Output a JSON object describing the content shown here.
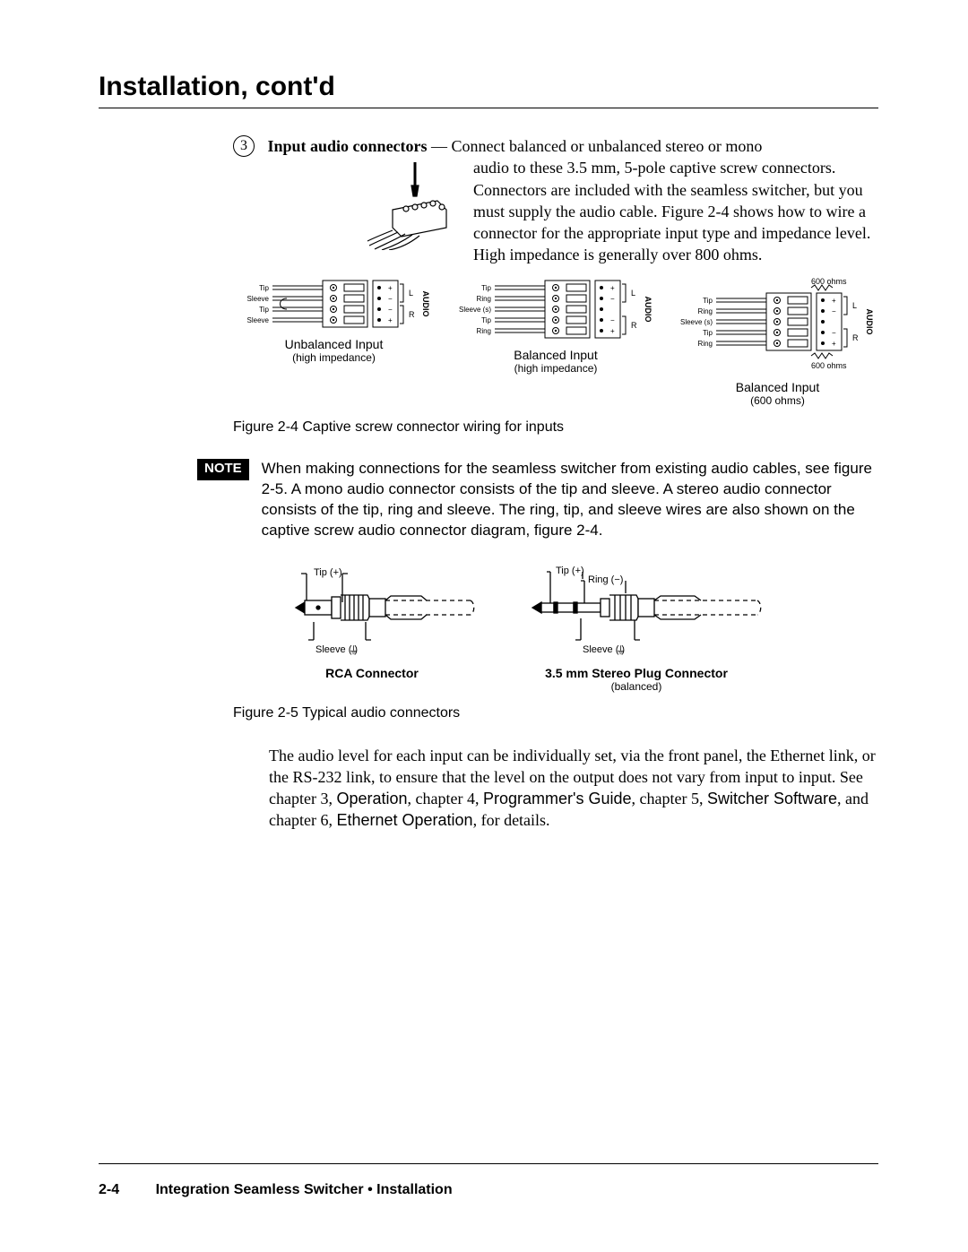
{
  "page": {
    "title": "Installation, cont'd",
    "footer_page": "2-4",
    "footer_text": "Integration Seamless Switcher • Installation"
  },
  "item3": {
    "number": "3",
    "lead_bold": "Input audio connectors",
    "lead_rest": " — Connect balanced or unbalanced stereo or mono",
    "body": "audio to these 3.5 mm, 5-pole captive screw connectors. Connectors are included with the seamless switcher, but you must supply the audio cable.  Figure 2-4 shows how to wire a connector for the appropriate input type and impedance level.  High impedance is generally over 800 ohms."
  },
  "fig24": {
    "caption": "Figure 2-4   Captive screw connector wiring for inputs",
    "ohms_label": "600 ohms",
    "audio_label": "AUDIO",
    "channels": {
      "L": "L",
      "R": "R"
    },
    "pins": {
      "plus": "+",
      "minus": "−"
    },
    "blocks": [
      {
        "title": "Unbalanced Input",
        "sub": "(high impedance)",
        "labels": [
          "Tip",
          "Sleeve",
          "Tip",
          "Sleeve"
        ],
        "ohms": false
      },
      {
        "title": "Balanced Input",
        "sub": "(high impedance)",
        "labels": [
          "Tip",
          "Ring",
          "Sleeve (s)",
          "Tip",
          "Ring"
        ],
        "ohms": false
      },
      {
        "title": "Balanced Input",
        "sub": "(600 ohms)",
        "labels": [
          "Tip",
          "Ring",
          "Sleeve (s)",
          "Tip",
          "Ring"
        ],
        "ohms": true
      }
    ]
  },
  "note": {
    "badge": "NOTE",
    "text": "When making connections for the seamless switcher from existing audio cables, see figure 2-5.  A mono audio connector consists of the tip and sleeve.  A stereo audio connector consists of the tip, ring and sleeve.  The ring, tip, and sleeve wires are also shown on the captive screw audio connector diagram, figure 2-4."
  },
  "fig25": {
    "caption": "Figure 2-5   Typical audio connectors",
    "rca": {
      "label": "RCA Connector",
      "tip": "Tip (+)",
      "sleeve": "Sleeve (   )",
      "ground_symbol": "⏚"
    },
    "stereo35": {
      "label": "3.5 mm Stereo Plug Connector",
      "sub": "(balanced)",
      "tip": "Tip (+)",
      "ring": "Ring (−)",
      "sleeve": "Sleeve (   )",
      "ground_symbol": "⏚"
    }
  },
  "audio_level": {
    "text1": "The audio level for each input can be individually set, via the front panel, the Ethernet link, or the RS-232 link, to ensure that the level on the output does not vary from input to input.  See chapter 3, ",
    "c3": "Operation",
    "text2": ", chapter 4, ",
    "c4": "Programmer's Guide",
    "text3": ", chapter 5, ",
    "c5": "Switcher Software",
    "text4": ", and chapter 6, ",
    "c6": "Ethernet Operation",
    "text5": ", for details."
  },
  "style": {
    "colors": {
      "text": "#000000",
      "bg": "#ffffff",
      "note_bg": "#000000",
      "note_fg": "#ffffff",
      "diagram_fill": "#ffffff",
      "diagram_stroke": "#000000",
      "diagram_dash": "4 3"
    },
    "fonts": {
      "serif": "Palatino",
      "sans": "Arial",
      "title_pt": 22,
      "body_pt": 13.5,
      "caption_pt": 12,
      "small_pt": 10,
      "tiny_pt": 8
    }
  }
}
